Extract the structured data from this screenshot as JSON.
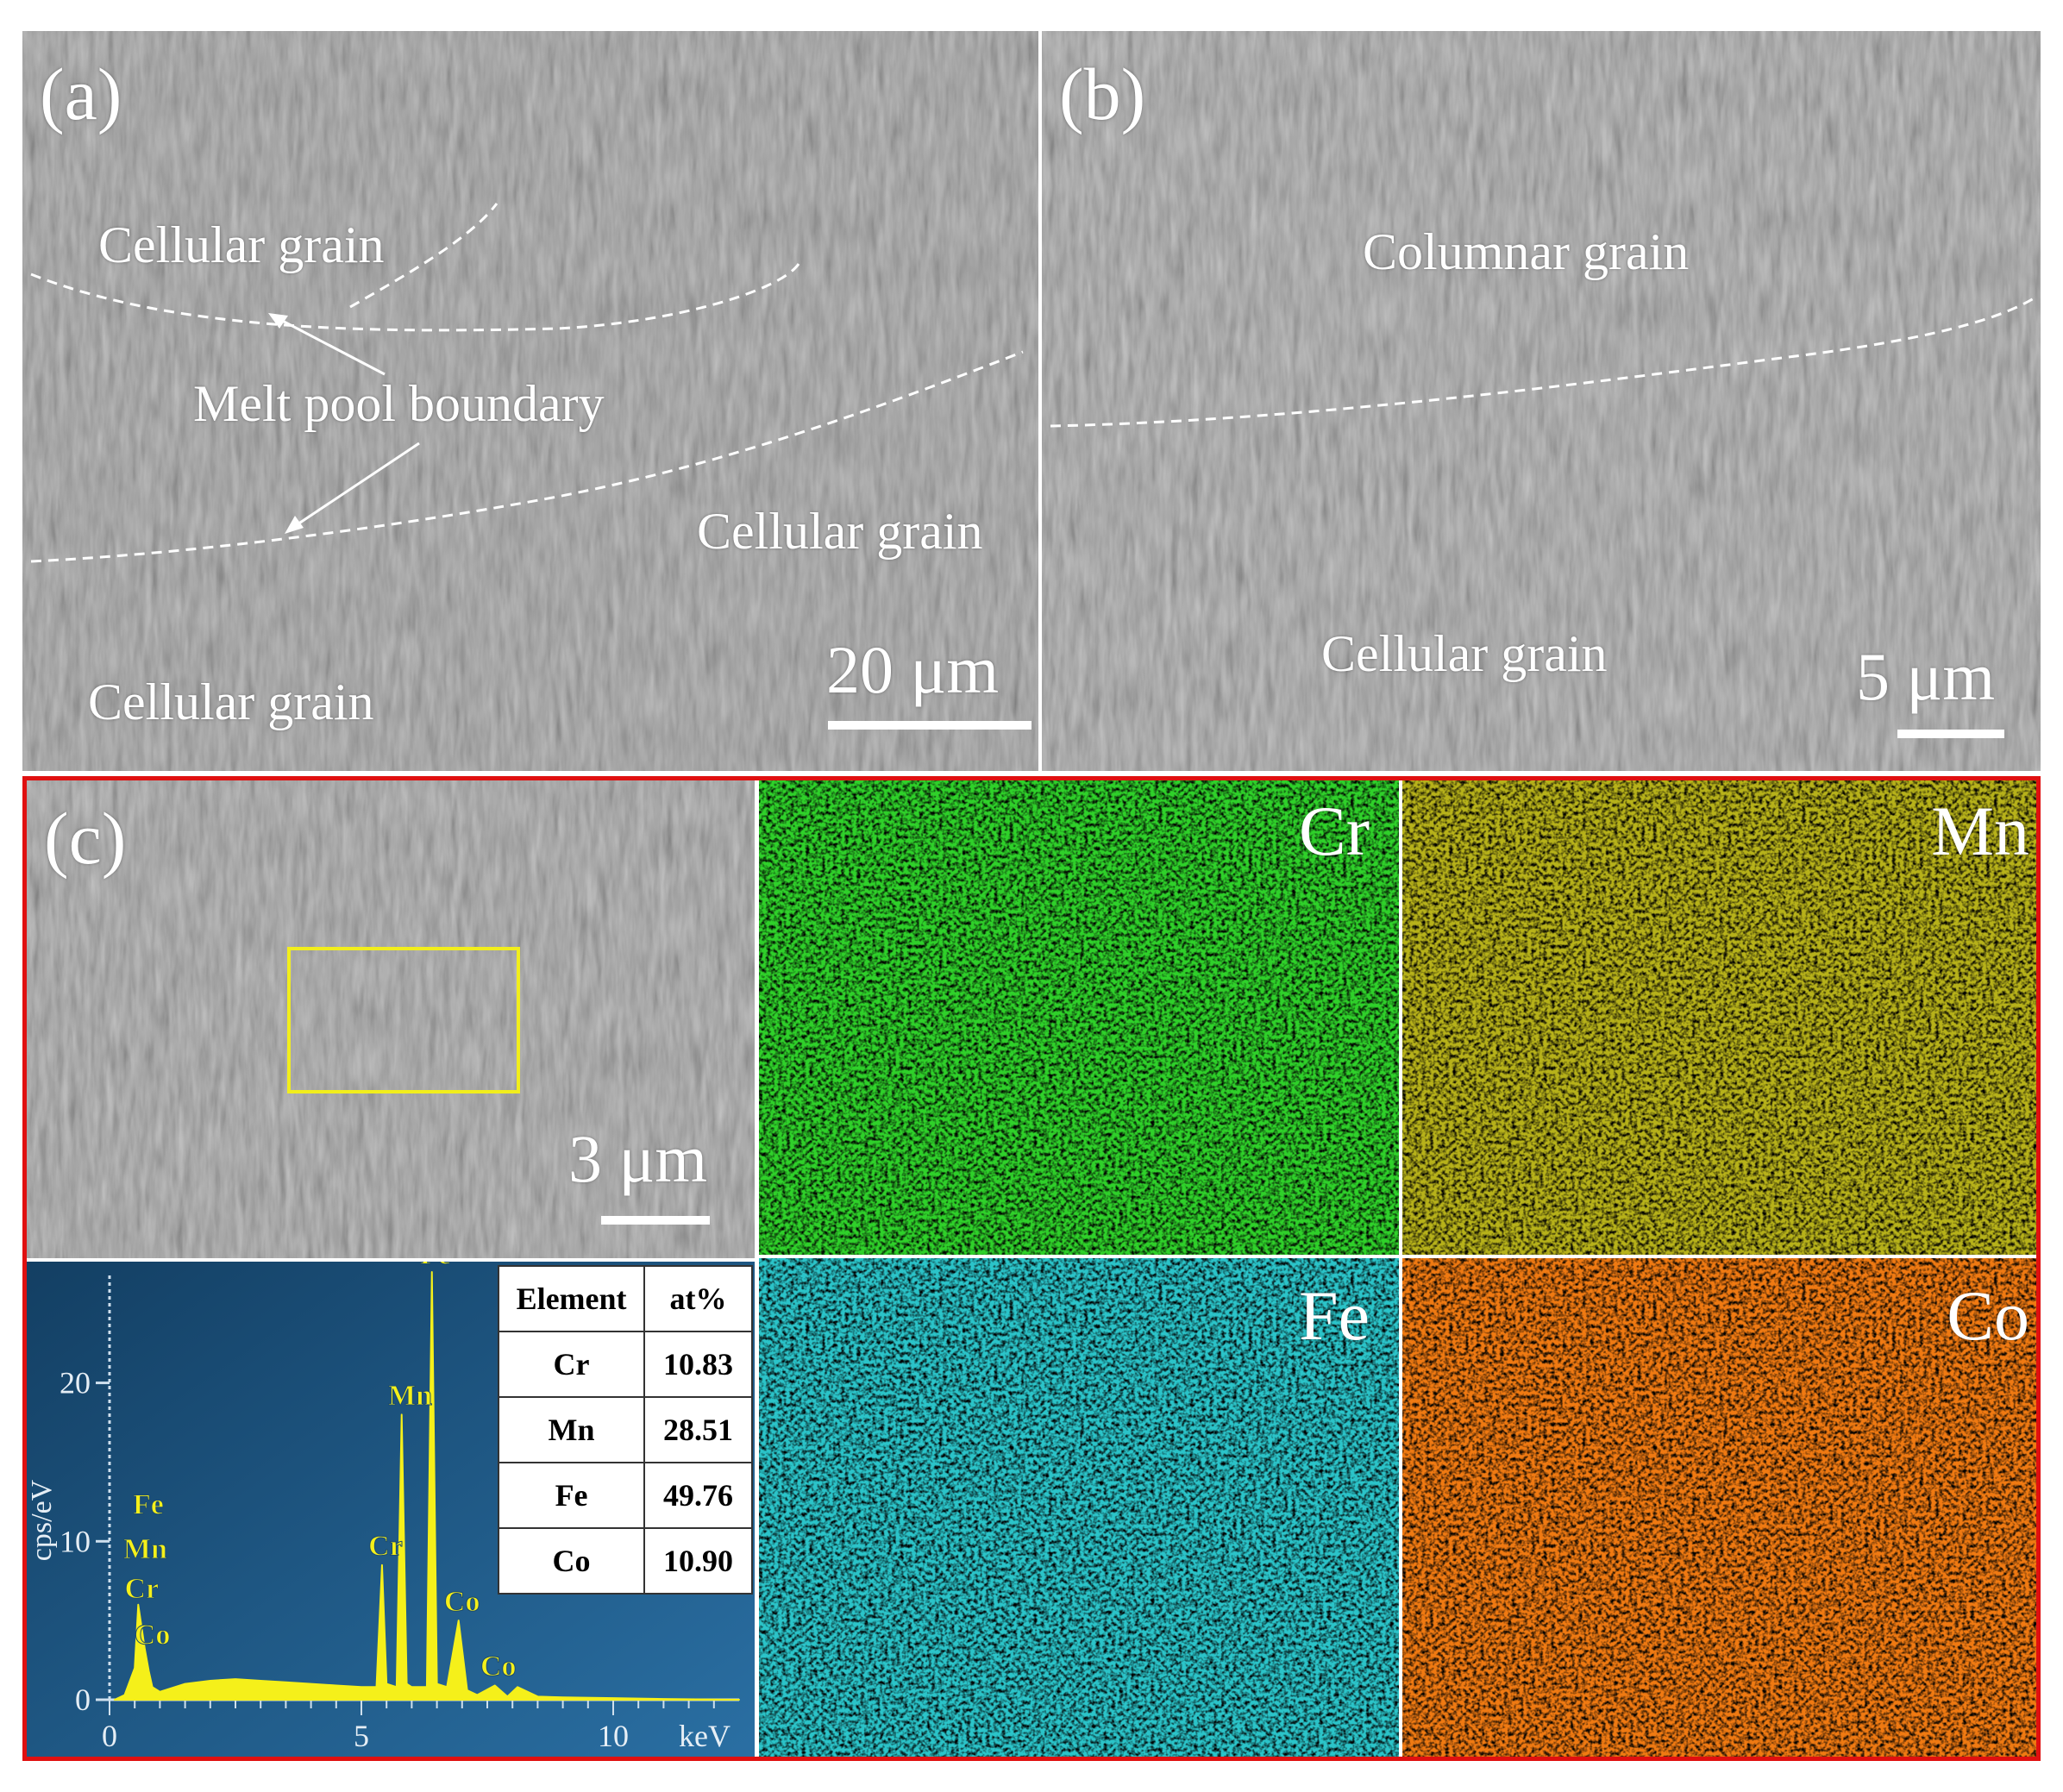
{
  "panels": {
    "a": {
      "label": "(a)",
      "grains": [
        "Cellular grain",
        "Cellular grain",
        "Cellular grain"
      ],
      "boundary_label": "Melt pool boundary",
      "scale": "20 μm"
    },
    "b": {
      "label": "(b)",
      "grains": [
        "Columnar grain",
        "Cellular grain"
      ],
      "scale": "5 μm"
    },
    "c": {
      "label": "(c)",
      "scale": "3 μm",
      "maps": [
        {
          "element": "Cr",
          "color": "#2fd12a"
        },
        {
          "element": "Mn",
          "color": "#b7b21a"
        },
        {
          "element": "Fe",
          "color": "#2bc4c9"
        },
        {
          "element": "Co",
          "color": "#f07a12"
        }
      ]
    }
  },
  "table": {
    "headers": [
      "Element",
      "at%"
    ],
    "rows": [
      [
        "Cr",
        "10.83"
      ],
      [
        "Mn",
        "28.51"
      ],
      [
        "Fe",
        "49.76"
      ],
      [
        "Co",
        "10.90"
      ]
    ]
  },
  "chart_data": {
    "type": "line",
    "title": "",
    "xlabel": "keV",
    "ylabel": "cps/eV",
    "xlim": [
      0,
      12.5
    ],
    "ylim": [
      0,
      27
    ],
    "x_ticks": [
      "0",
      "5",
      "10"
    ],
    "y_ticks": [
      "0",
      "10",
      "20"
    ],
    "series": [
      {
        "x": [
          0.1,
          0.3,
          0.5,
          0.57,
          0.64,
          0.7,
          0.78,
          0.85,
          1.0,
          1.5,
          2.0,
          2.5,
          3.0,
          3.5,
          4.0,
          4.5,
          5.0,
          5.3,
          5.41,
          5.5,
          5.7,
          5.8,
          5.9,
          6.0,
          6.3,
          6.4,
          6.5,
          6.7,
          6.93,
          7.1,
          7.3,
          7.65,
          7.9,
          8.1,
          8.5,
          9,
          10,
          11,
          12.5
        ],
        "y": [
          0,
          0.3,
          2,
          6,
          4.5,
          3.2,
          1.8,
          0.8,
          0.5,
          1.0,
          1.2,
          1.3,
          1.2,
          1.1,
          1.0,
          0.9,
          0.8,
          0.8,
          8.5,
          1.0,
          0.8,
          18,
          1.0,
          0.8,
          0.8,
          27,
          1.0,
          0.8,
          5,
          0.6,
          0.3,
          0.9,
          0.2,
          0.8,
          0.2,
          0.15,
          0.1,
          0.05,
          0
        ]
      }
    ],
    "peak_labels": [
      {
        "label": "Fe",
        "x": 0.7,
        "y": 11.5
      },
      {
        "label": "Mn",
        "x": 0.64,
        "y": 8.7
      },
      {
        "label": "Cr",
        "x": 0.57,
        "y": 6.2
      },
      {
        "label": "Co",
        "x": 0.78,
        "y": 3.3
      },
      {
        "label": "Cr",
        "x": 5.41,
        "y": 8.9
      },
      {
        "label": "Mn",
        "x": 5.9,
        "y": 18.4
      },
      {
        "label": "Fe",
        "x": 6.4,
        "y": 27.3
      },
      {
        "label": "Co",
        "x": 6.93,
        "y": 5.4
      },
      {
        "label": "Co",
        "x": 7.65,
        "y": 1.3
      }
    ]
  }
}
